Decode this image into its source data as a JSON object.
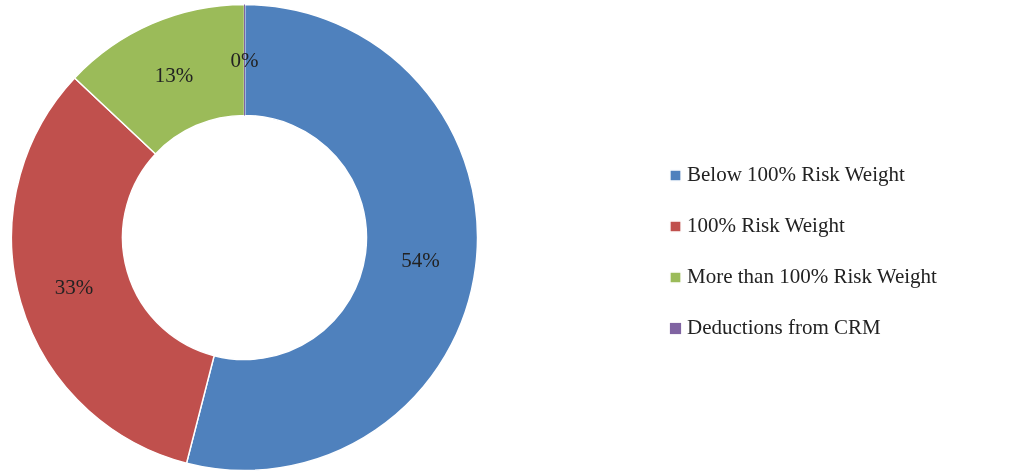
{
  "chart_data": {
    "type": "donut",
    "categories": [
      "Below 100% Risk Weight",
      "100% Risk Weight",
      "More than 100% Risk Weight",
      "Deductions from CRM"
    ],
    "values": [
      54,
      33,
      13,
      0
    ],
    "colors": [
      "#4f81bd",
      "#c0504d",
      "#9bbb59",
      "#8064a2"
    ],
    "value_labels": [
      "54%",
      "33%",
      "13%",
      "0%"
    ],
    "legend": "right"
  }
}
